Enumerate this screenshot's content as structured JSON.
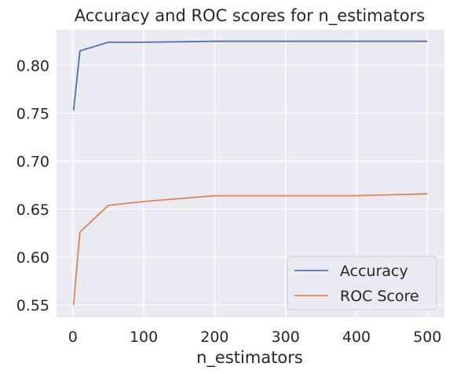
{
  "chart_data": {
    "type": "line",
    "title": "Accuracy and ROC scores for n_estimators",
    "xlabel": "n_estimators",
    "ylabel": "",
    "x": [
      1,
      10,
      50,
      100,
      200,
      300,
      400,
      500
    ],
    "xlim": [
      -23,
      524
    ],
    "ylim": [
      0.537,
      0.837
    ],
    "xticks": [
      0,
      100,
      200,
      300,
      400,
      500
    ],
    "xtick_labels": [
      "0",
      "100",
      "200",
      "300",
      "400",
      "500"
    ],
    "yticks": [
      0.55,
      0.6,
      0.65,
      0.7,
      0.75,
      0.8
    ],
    "ytick_labels": [
      "0.55",
      "0.60",
      "0.65",
      "0.70",
      "0.75",
      "0.80"
    ],
    "grid": true,
    "legend_position": "lower-right",
    "series": [
      {
        "name": "Accuracy",
        "color": "#4c72b0",
        "values": [
          0.753,
          0.815,
          0.824,
          0.824,
          0.825,
          0.825,
          0.825,
          0.825
        ]
      },
      {
        "name": "ROC Score",
        "color": "#dd8452",
        "values": [
          0.55,
          0.626,
          0.654,
          0.658,
          0.664,
          0.664,
          0.664,
          0.666
        ]
      }
    ]
  }
}
